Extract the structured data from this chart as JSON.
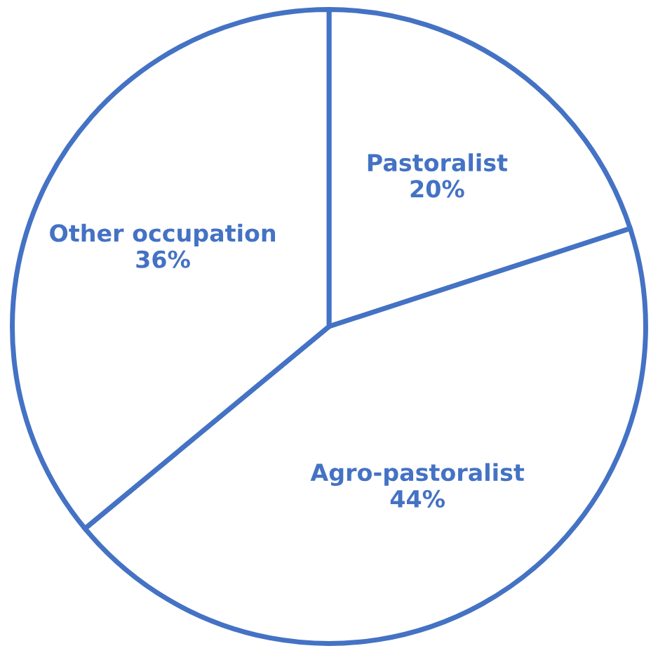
{
  "chart_data": {
    "type": "pie",
    "categories": [
      "Pastoralist",
      "Agro-pastoralist",
      "Other occupation"
    ],
    "values": [
      20,
      44,
      36
    ],
    "value_labels": [
      "20%",
      "44%",
      "36%"
    ],
    "colors": [
      "#ffffff",
      "#ffffff",
      "#ffffff"
    ]
  }
}
